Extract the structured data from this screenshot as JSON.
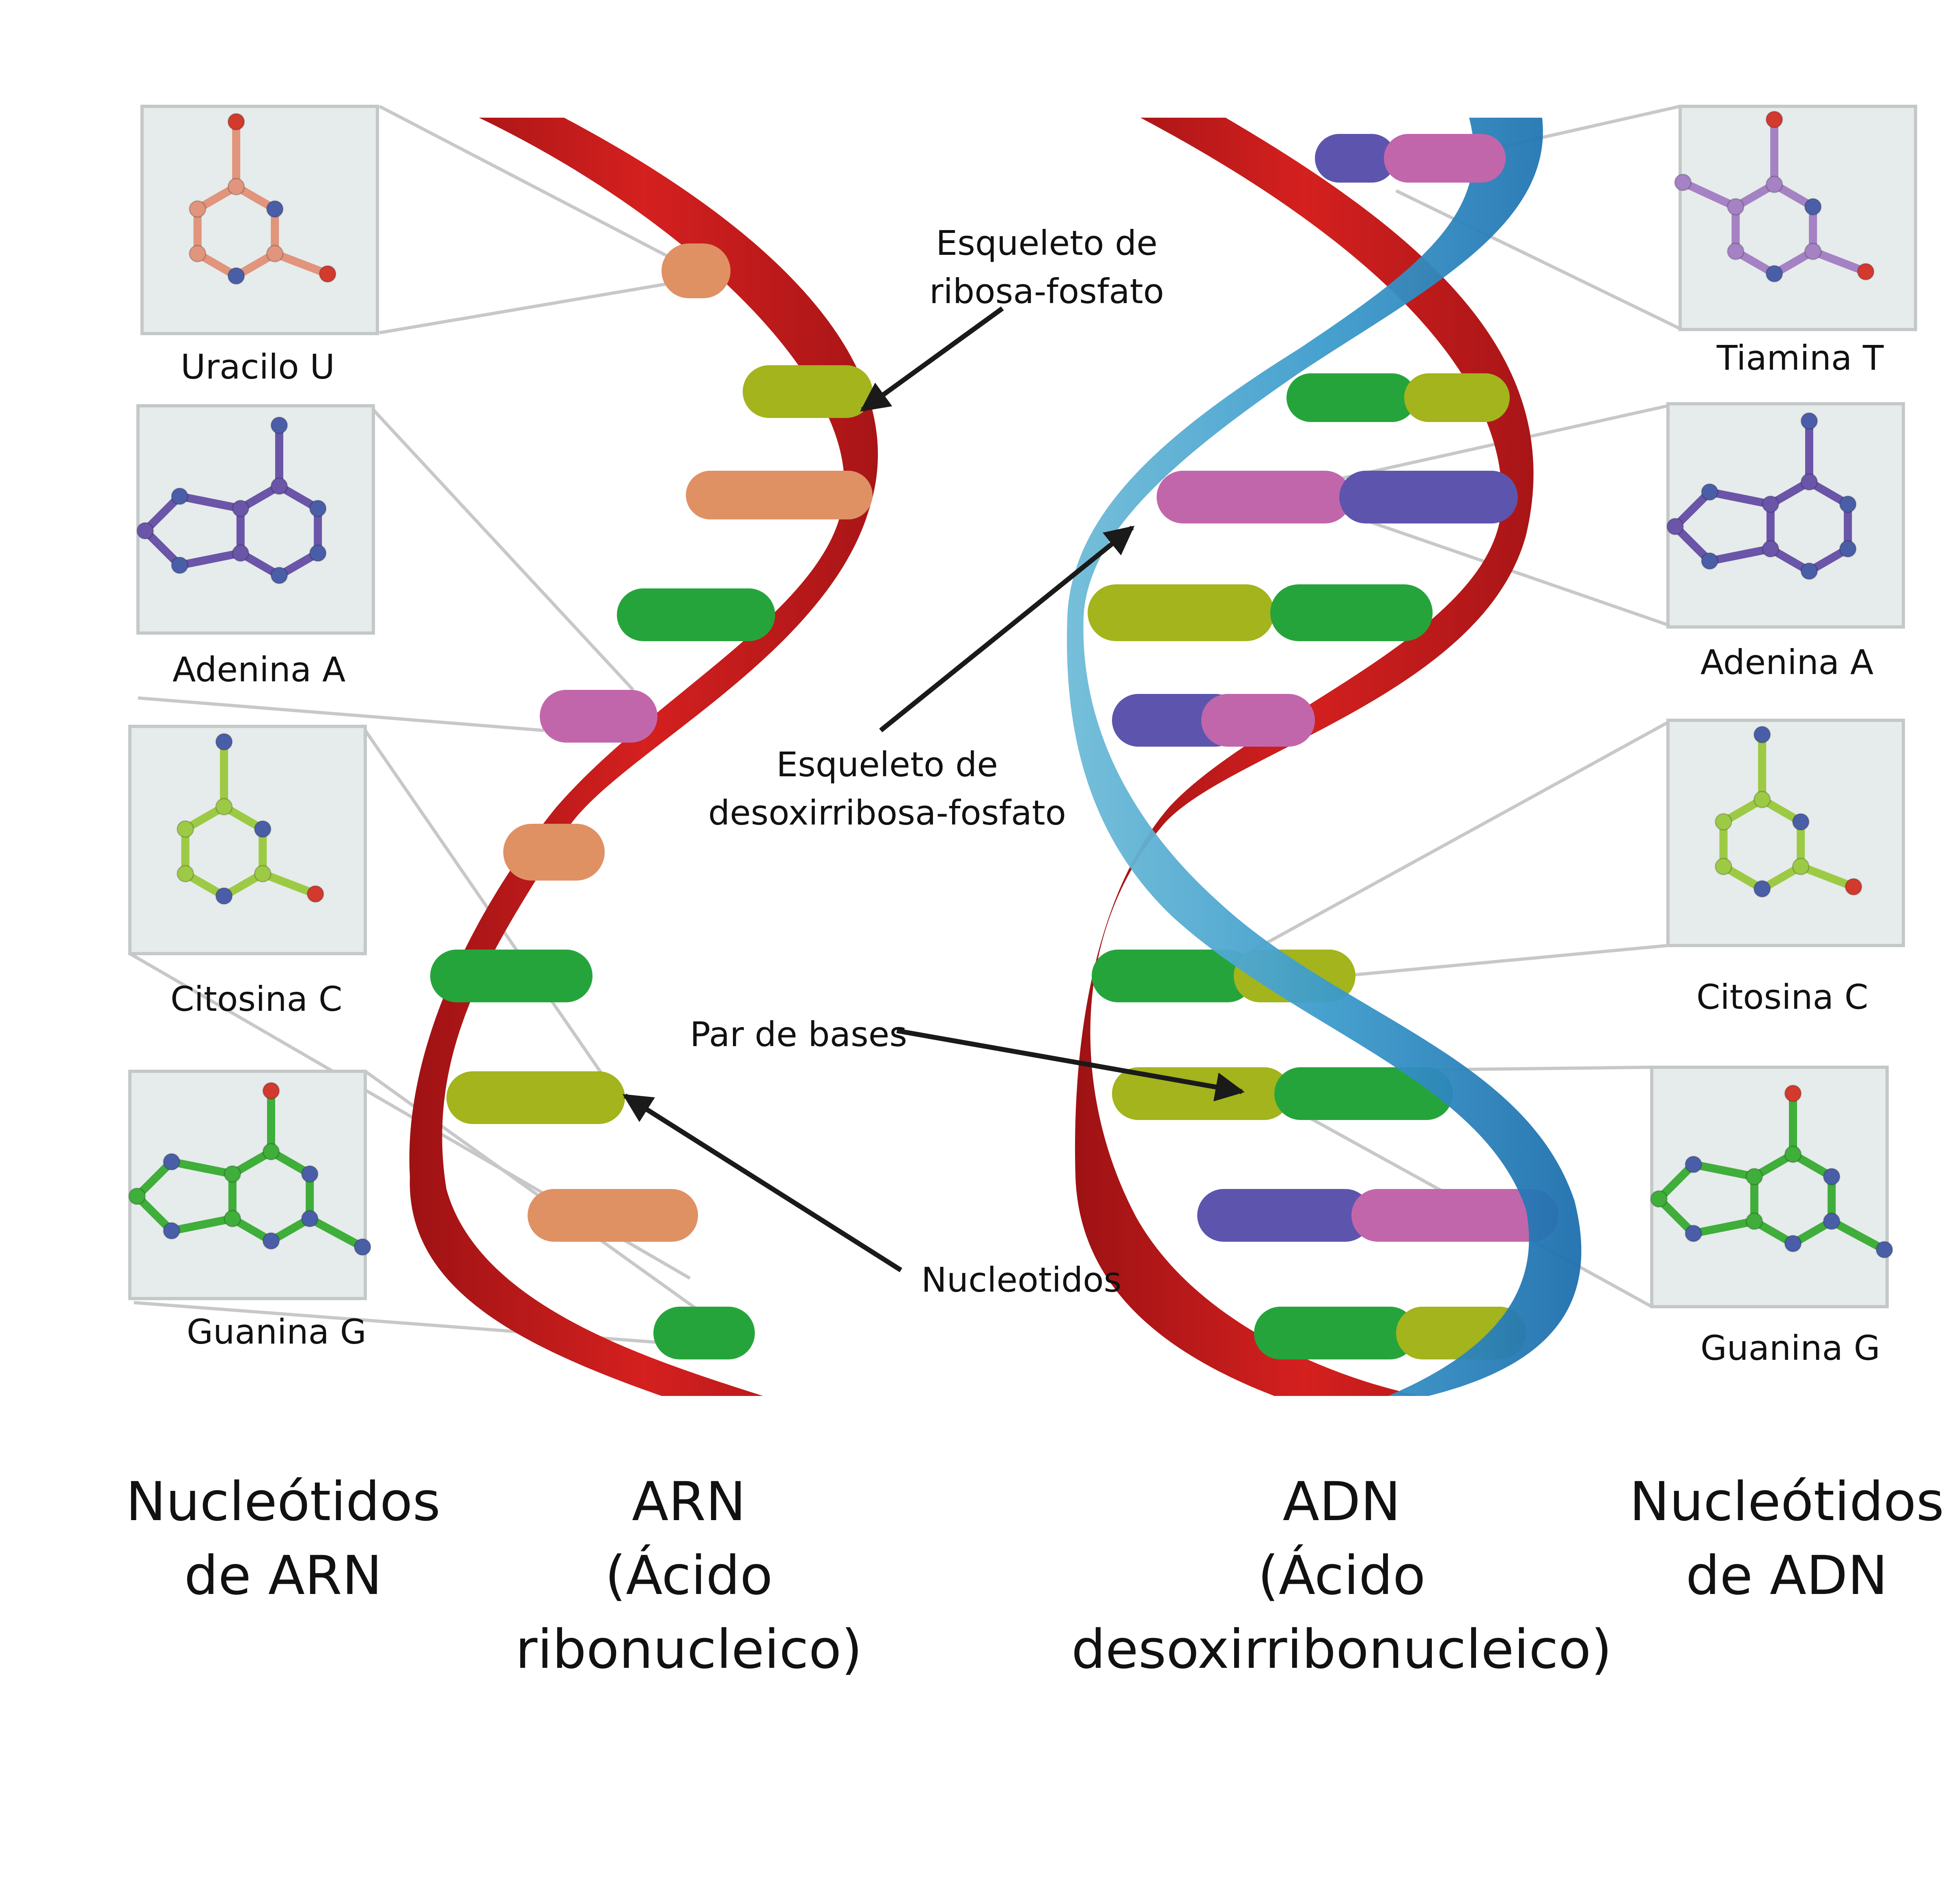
{
  "rna_panel": {
    "nucleotides": [
      {
        "id": "uracil",
        "label": "Uracilo U",
        "ring": "pyrimidine",
        "color": "#e0957c"
      },
      {
        "id": "adenine",
        "label": "Adenina A",
        "ring": "purine",
        "color": "#6a55a8"
      },
      {
        "id": "cytosine",
        "label": "Citosina C",
        "ring": "pyrimidine-amine",
        "color": "#9dca45"
      },
      {
        "id": "guanine",
        "label": "Guanina G",
        "ring": "purine-oxo",
        "color": "#3fae3a"
      }
    ],
    "caption": "Nucleótidos\nde ARN"
  },
  "dna_panel": {
    "nucleotides": [
      {
        "id": "thymine",
        "label": "Tiamina T",
        "ring": "pyrimidine-methyl",
        "color": "#a582c4"
      },
      {
        "id": "adenine",
        "label": "Adenina A",
        "ring": "purine",
        "color": "#6a55a8"
      },
      {
        "id": "cytosine",
        "label": "Citosina C",
        "ring": "pyrimidine-amine",
        "color": "#9dca45"
      },
      {
        "id": "guanine",
        "label": "Guanina G",
        "ring": "purine-oxo",
        "color": "#3fae3a"
      }
    ],
    "caption": "Nucleótidos\nde  ADN"
  },
  "callouts": {
    "ribose_backbone": "Esqueleto de\nribosa-fosfato",
    "deoxyribose_backbone": "Esqueleto de\ndesoxirribosa-fosfato",
    "base_pair": "Par de bases",
    "nucleotides": "Nucleotidos"
  },
  "rna_title": "ARN\n(Ácido\nribonucleico)",
  "dna_title": "ADN\n(Ácido\ndesoxirribonucleico)",
  "colors": {
    "rna_strand": "#c01a1c",
    "dna_strand_red": "#c01a1c",
    "dna_strand_blue": "#4aa6cf",
    "uracil_base": "#df9164",
    "adenine_base": "#c266ab",
    "thymine_base": "#5d55ad",
    "cytosine_base": "#a3b41c",
    "guanine_base": "#26a43c",
    "carbon_nitrogen_blue": "#4a5ea8",
    "oxygen": "#d23a2e"
  }
}
